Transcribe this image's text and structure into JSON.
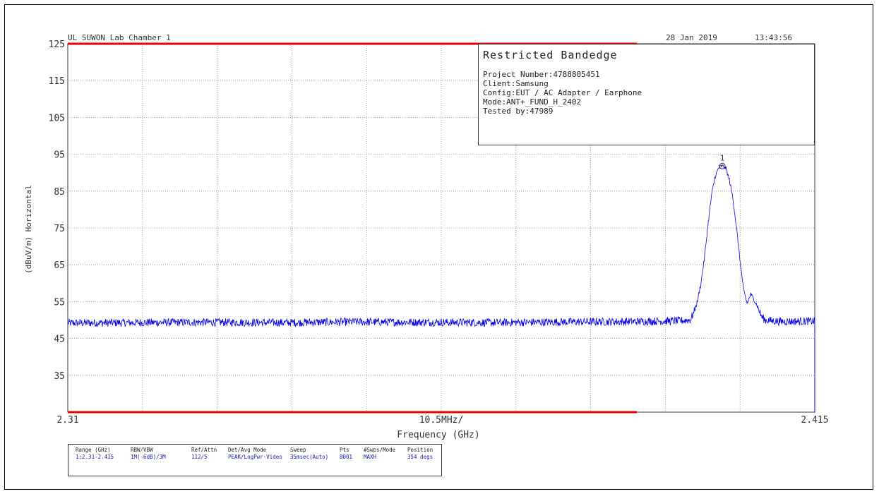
{
  "header": {
    "lab": "UL SUWON Lab Chamber 1",
    "date": "28 Jan 2019",
    "time": "13:43:56"
  },
  "info_box": {
    "title": "Restricted Bandedge",
    "lines": [
      "Project Number:4788805451",
      "Client:Samsung",
      "Config:EUT / AC Adapter / Earphone",
      "Mode:ANT+_FUND_H_2402",
      "Tested by:47989"
    ]
  },
  "settings": {
    "columns": [
      {
        "label": "Range (GHz)",
        "value": "1:2.31-2.415"
      },
      {
        "label": "RBW/VBW",
        "value": "1M(-6dB)/3M"
      },
      {
        "label": "Ref/Attn",
        "value": "112/5"
      },
      {
        "label": "Det/Avg Mode",
        "value": "PEAK/LogPwr-Video"
      },
      {
        "label": "Sweep",
        "value": "35msec(Auto)"
      },
      {
        "label": "Pts",
        "value": "8001"
      },
      {
        "label": "#Swps/Mode",
        "value": "MAXH"
      },
      {
        "label": "Position",
        "value": "354 degs"
      }
    ]
  },
  "colors": {
    "trace": "#0000ee",
    "limit": "#ee0000",
    "grid": "#8a8a8a",
    "axis": "#333333"
  },
  "chart_data": {
    "type": "line",
    "title": "Restricted Bandedge",
    "xlabel": "Frequency (GHz)",
    "ylabel": "(dBuV/m) Horizontal",
    "xlim": [
      2.31,
      2.415
    ],
    "ylim": [
      25,
      125
    ],
    "x_tick_labels": [
      "2.31",
      "2.415"
    ],
    "x_center_label": "10.5MHz/",
    "y_ticks": [
      125,
      115,
      105,
      95,
      85,
      75,
      65,
      55,
      45,
      35
    ],
    "grid": true,
    "limit_lines": [
      {
        "y": 125,
        "x_start": 2.31,
        "x_end": 2.39
      },
      {
        "y": 25,
        "x_start": 2.31,
        "x_end": 2.39
      }
    ],
    "series": [
      {
        "points": [
          [
            2.31,
            49.2
          ],
          [
            2.3196,
            49.3
          ],
          [
            2.33,
            49.4
          ],
          [
            2.34,
            49.3
          ],
          [
            2.35,
            49.5
          ],
          [
            2.36,
            49.4
          ],
          [
            2.37,
            49.3
          ],
          [
            2.38,
            49.5
          ],
          [
            2.39,
            49.6
          ],
          [
            2.396,
            49.8
          ],
          [
            2.3975,
            50.0
          ],
          [
            2.398,
            52.0
          ],
          [
            2.3985,
            55.0
          ],
          [
            2.399,
            60.0
          ],
          [
            2.3995,
            67.0
          ],
          [
            2.4,
            76.0
          ],
          [
            2.4005,
            84.0
          ],
          [
            2.401,
            89.0
          ],
          [
            2.4015,
            91.3
          ],
          [
            2.402,
            91.8
          ],
          [
            2.4025,
            91.3
          ],
          [
            2.403,
            88.0
          ],
          [
            2.4035,
            83.0
          ],
          [
            2.404,
            75.0
          ],
          [
            2.4045,
            66.0
          ],
          [
            2.405,
            58.0
          ],
          [
            2.4055,
            54.5
          ],
          [
            2.406,
            57.0
          ],
          [
            2.4065,
            55.5
          ],
          [
            2.407,
            53.5
          ],
          [
            2.4075,
            51.0
          ],
          [
            2.408,
            50.0
          ],
          [
            2.41,
            49.6
          ],
          [
            2.415,
            49.7
          ]
        ]
      }
    ],
    "markers": [
      {
        "label": "1",
        "x": 2.402,
        "y": 91.8
      }
    ]
  }
}
